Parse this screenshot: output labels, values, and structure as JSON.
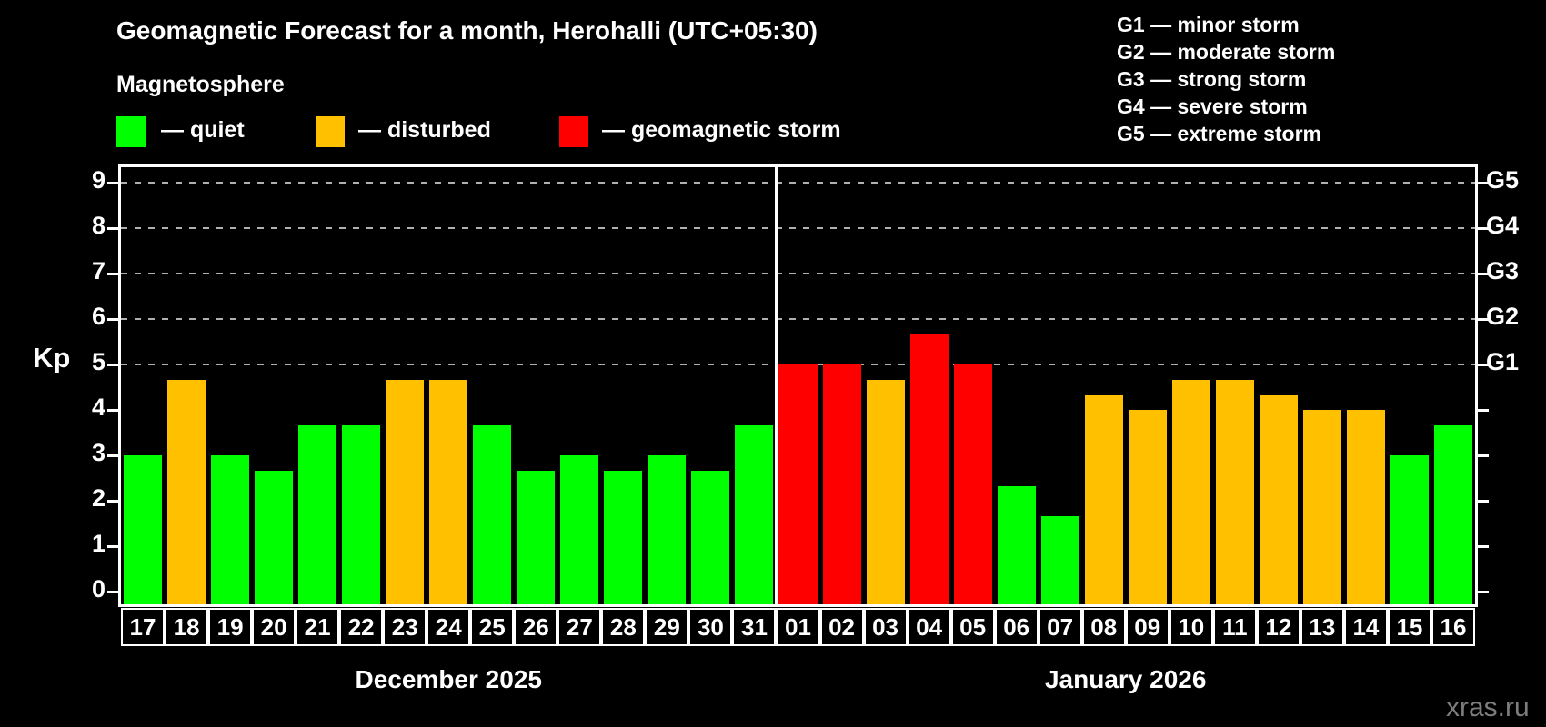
{
  "header": {
    "title": "Geomagnetic Forecast for a month, Herohalli (UTC+05:30)",
    "subtitle": "Magnetosphere"
  },
  "legend": {
    "quiet_label": "— quiet",
    "disturbed_label": "— disturbed",
    "storm_label": "— geomagnetic storm"
  },
  "g_legend": [
    "G1 — minor storm",
    "G2 — moderate storm",
    "G3 — strong storm",
    "G4 — severe storm",
    "G5 — extreme storm"
  ],
  "axis": {
    "y_label": "Kp",
    "y_tick_labels": [
      "0",
      "1",
      "2",
      "3",
      "4",
      "5",
      "6",
      "7",
      "8",
      "9"
    ],
    "right_labels": [
      {
        "kp": 5,
        "label": "G1"
      },
      {
        "kp": 6,
        "label": "G2"
      },
      {
        "kp": 7,
        "label": "G3"
      },
      {
        "kp": 8,
        "label": "G4"
      },
      {
        "kp": 9,
        "label": "G5"
      }
    ]
  },
  "months": [
    {
      "label": "December 2025",
      "days": 15
    },
    {
      "label": "January 2026",
      "days": 16
    }
  ],
  "colors": {
    "quiet": "#00ff00",
    "disturbed": "#ffc000",
    "storm": "#ff0000",
    "background": "#000000",
    "text": "#ffffff",
    "gridline": "#b0b0b0",
    "watermark": "#7d7d7d"
  },
  "watermark": "xras.ru",
  "chart_data": {
    "type": "bar",
    "title": "Geomagnetic Forecast for a month, Herohalli (UTC+05:30)",
    "xlabel": "",
    "ylabel": "Kp",
    "ylim": [
      0,
      9
    ],
    "grid_levels": [
      5,
      6,
      7,
      8,
      9
    ],
    "legend_position": "top",
    "categories": [
      "17",
      "18",
      "19",
      "20",
      "21",
      "22",
      "23",
      "24",
      "25",
      "26",
      "27",
      "28",
      "29",
      "30",
      "31",
      "01",
      "02",
      "03",
      "04",
      "05",
      "06",
      "07",
      "08",
      "09",
      "10",
      "11",
      "12",
      "13",
      "14",
      "15",
      "16"
    ],
    "values": [
      3.0,
      4.67,
      3.0,
      2.67,
      3.67,
      3.67,
      4.67,
      4.67,
      3.67,
      2.67,
      3.0,
      2.67,
      3.0,
      2.67,
      3.67,
      5.0,
      5.0,
      4.67,
      5.67,
      5.0,
      2.33,
      1.67,
      4.33,
      4.0,
      4.67,
      4.67,
      4.33,
      4.0,
      4.0,
      3.0,
      3.67
    ],
    "statuses": [
      "quiet",
      "disturbed",
      "quiet",
      "quiet",
      "quiet",
      "quiet",
      "disturbed",
      "disturbed",
      "quiet",
      "quiet",
      "quiet",
      "quiet",
      "quiet",
      "quiet",
      "quiet",
      "storm",
      "storm",
      "disturbed",
      "storm",
      "storm",
      "quiet",
      "quiet",
      "disturbed",
      "disturbed",
      "disturbed",
      "disturbed",
      "disturbed",
      "disturbed",
      "disturbed",
      "quiet",
      "quiet"
    ]
  }
}
